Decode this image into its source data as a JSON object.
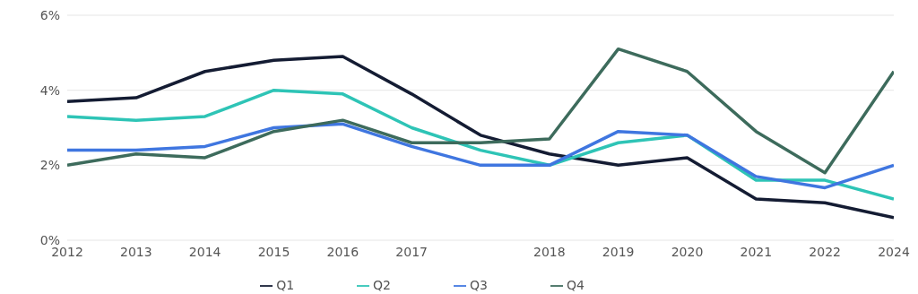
{
  "chart_data": {
    "type": "line",
    "categories": [
      "2012",
      "2013",
      "2014",
      "2015",
      "2016",
      "2017",
      null,
      "2018",
      "2019",
      "2020",
      "2021",
      "2022",
      "2024"
    ],
    "ylim": [
      0,
      6
    ],
    "yticks": [
      {
        "value": 0,
        "label": "0%"
      },
      {
        "value": 2,
        "label": "2%"
      },
      {
        "value": 4,
        "label": "4%"
      },
      {
        "value": 6,
        "label": "6%"
      }
    ],
    "grid": "y",
    "legend": "bottom",
    "marker": "none",
    "line_style": "solid",
    "series": [
      {
        "name": "Q1",
        "color": "#141c33",
        "values": [
          3.7,
          3.8,
          4.5,
          4.8,
          4.9,
          3.9,
          2.8,
          2.3,
          2.0,
          2.2,
          1.1,
          1.0,
          0.6
        ]
      },
      {
        "name": "Q2",
        "color": "#2ec4b6",
        "values": [
          3.3,
          3.2,
          3.3,
          4.0,
          3.9,
          3.0,
          2.4,
          2.0,
          2.6,
          2.8,
          1.6,
          1.6,
          1.1
        ]
      },
      {
        "name": "Q3",
        "color": "#3f76e0",
        "values": [
          2.4,
          2.4,
          2.5,
          3.0,
          3.1,
          2.5,
          2.0,
          2.0,
          2.9,
          2.8,
          1.7,
          1.4,
          2.0
        ]
      },
      {
        "name": "Q4",
        "color": "#3d6b5c",
        "values": [
          2.0,
          2.3,
          2.2,
          2.9,
          3.2,
          2.6,
          2.6,
          2.7,
          5.1,
          4.5,
          2.9,
          1.8,
          4.5
        ]
      }
    ]
  }
}
